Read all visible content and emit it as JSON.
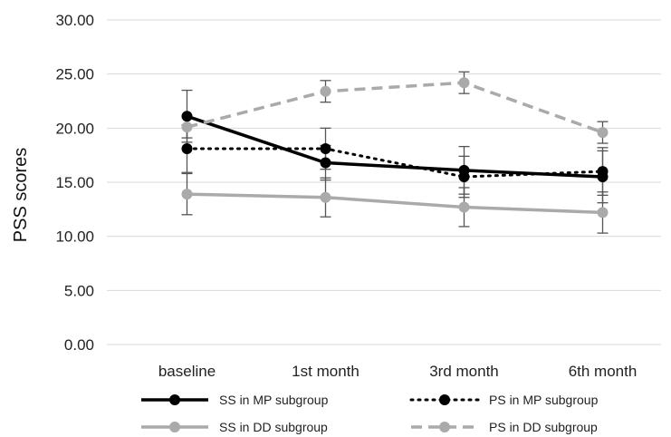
{
  "chart_data": {
    "type": "line",
    "title": "",
    "xlabel": "",
    "ylabel": "PSS scores",
    "ylim": [
      0,
      30
    ],
    "yticks": [
      "0.00",
      "5.00",
      "10.00",
      "15.00",
      "20.00",
      "25.00",
      "30.00"
    ],
    "categories": [
      "baseline",
      "1st month",
      "3rd month",
      "6th month"
    ],
    "grid": true,
    "legend_position": "bottom",
    "series": [
      {
        "name": "SS in MP subgroup",
        "values": [
          21.1,
          16.8,
          16.1,
          15.5
        ],
        "error": [
          2.4,
          1.6,
          2.2,
          2.4
        ],
        "color": "#000000",
        "dash": "solid"
      },
      {
        "name": "PS in MP subgroup",
        "values": [
          18.1,
          18.1,
          15.5,
          16.0
        ],
        "error": [
          2.2,
          1.9,
          1.9,
          2.2
        ],
        "color": "#000000",
        "dash": "dotted"
      },
      {
        "name": "SS in DD subgroup",
        "values": [
          13.9,
          13.6,
          12.7,
          12.2
        ],
        "error": [
          1.9,
          1.8,
          1.8,
          1.9
        ],
        "color": "#aaaaaa",
        "dash": "solid"
      },
      {
        "name": "PS in DD subgroup",
        "values": [
          20.1,
          23.4,
          24.2,
          19.6
        ],
        "error": [
          1.0,
          1.0,
          1.0,
          1.0
        ],
        "color": "#aaaaaa",
        "dash": "dashed"
      }
    ]
  }
}
